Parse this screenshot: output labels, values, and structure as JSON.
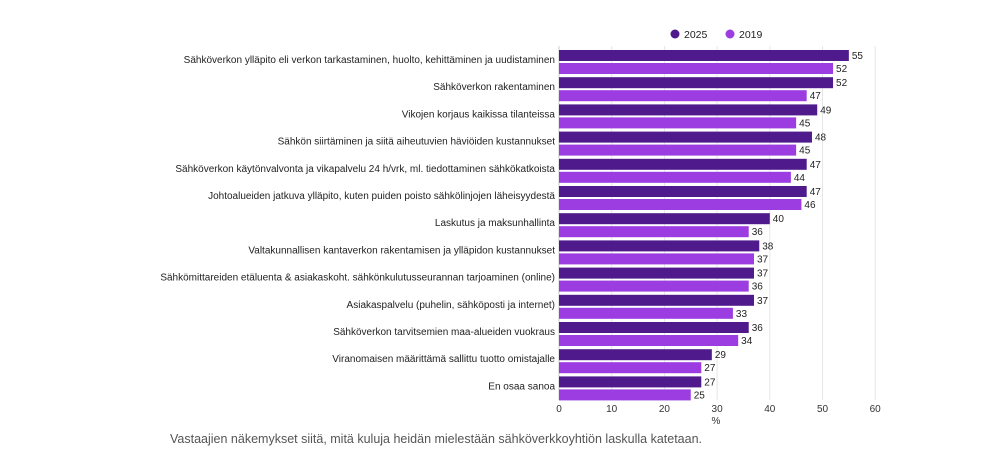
{
  "chart_data": {
    "type": "bar",
    "orientation": "horizontal",
    "categories": [
      "Sähköverkon ylläpito eli verkon tarkastaminen, huolto, kehittäminen ja uudistaminen",
      "Sähköverkon rakentaminen",
      "Vikojen korjaus kaikissa tilanteissa",
      "Sähkön siirtäminen ja siitä aiheutuvien häviöiden kustannukset",
      "Sähköverkon käytönvalvonta ja vikapalvelu 24 h/vrk, ml. tiedottaminen sähkökatkoista",
      "Johtoalueiden jatkuva ylläpito, kuten puiden poisto sähkölinjojen läheisyydestä",
      "Laskutus ja maksunhallinta",
      "Valtakunnallisen kantaverkon rakentamisen ja ylläpidon kustannukset",
      "Sähkömittareiden etäluenta & asiakaskoht. sähkönkulutusseurannan tarjoaminen (online)",
      "Asiakaspalvelu (puhelin, sähköposti ja internet)",
      "Sähköverkon tarvitsemien maa-alueiden vuokraus",
      "Viranomaisen määrittämä sallittu tuotto omistajalle",
      "En osaa sanoa"
    ],
    "series": [
      {
        "name": "2025",
        "color": "#4e1a8c",
        "values": [
          55,
          52,
          49,
          48,
          47,
          47,
          40,
          38,
          37,
          37,
          36,
          29,
          27
        ]
      },
      {
        "name": "2019",
        "color": "#9b3de0",
        "values": [
          52,
          47,
          45,
          45,
          44,
          46,
          36,
          37,
          36,
          33,
          34,
          27,
          25
        ]
      }
    ],
    "xlim": [
      0,
      60
    ],
    "xticks": [
      "0",
      "10",
      "20",
      "30",
      "40",
      "50",
      "60"
    ],
    "xlabel": "%",
    "grid": "vertical",
    "legend": "top-right"
  },
  "caption": "Vastaajien näkemykset siitä, mitä kuluja heidän mielestään sähköverkkoyhtiön laskulla katetaan."
}
